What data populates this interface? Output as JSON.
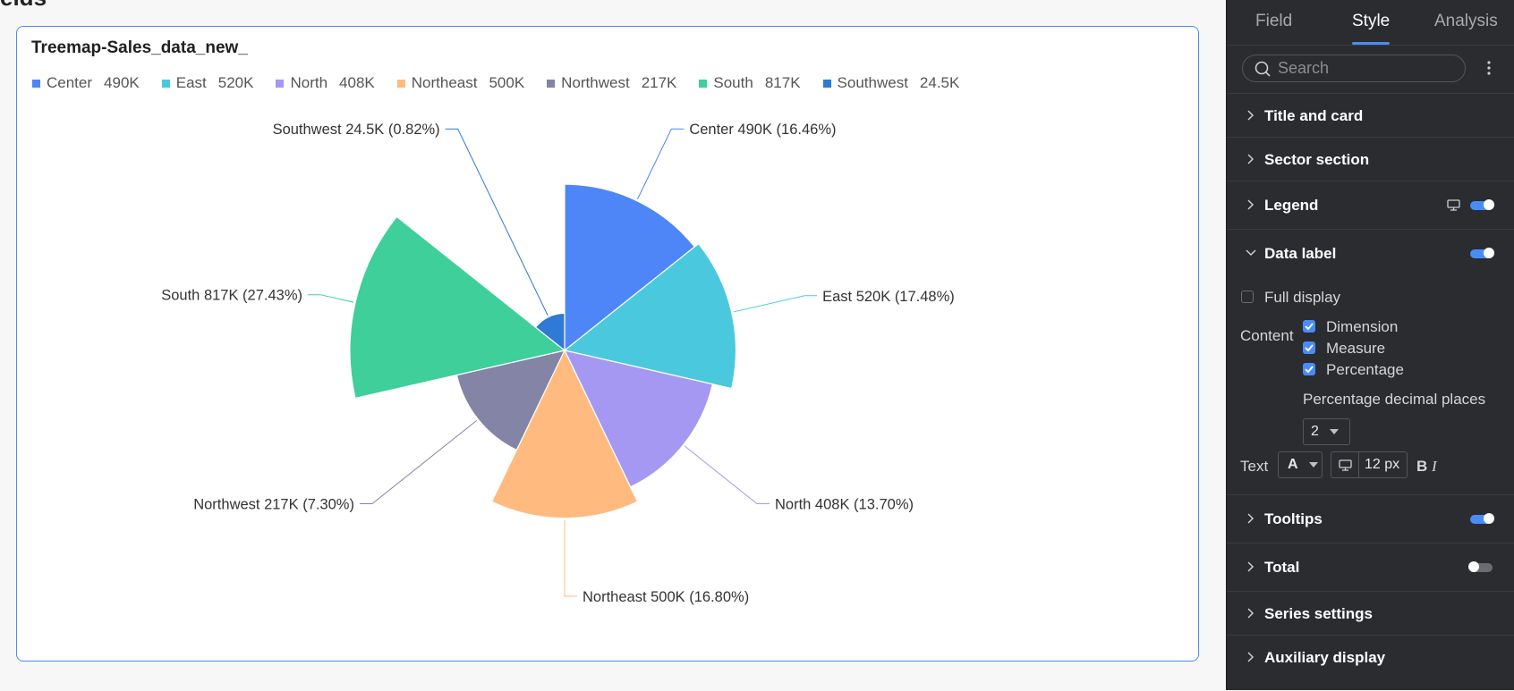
{
  "page_heading_fragment": "elds",
  "card": {
    "title": "Treemap-Sales_data_new_"
  },
  "legend": [
    {
      "name": "Center",
      "value": "490K",
      "color": "#4e86f8"
    },
    {
      "name": "East",
      "value": "520K",
      "color": "#4ac9de"
    },
    {
      "name": "North",
      "value": "408K",
      "color": "#a598f3"
    },
    {
      "name": "Northeast",
      "value": "500K",
      "color": "#ffbb7f"
    },
    {
      "name": "Northwest",
      "value": "217K",
      "color": "#8384a6"
    },
    {
      "name": "South",
      "value": "817K",
      "color": "#3ecf9a"
    },
    {
      "name": "Southwest",
      "value": "24.5K",
      "color": "#2e7ad4"
    }
  ],
  "chart_data": {
    "type": "pie",
    "subtype": "rose",
    "categories": [
      "Center",
      "East",
      "North",
      "Northeast",
      "Northwest",
      "South",
      "Southwest"
    ],
    "values": [
      490,
      520,
      408,
      500,
      217,
      817,
      24.5
    ],
    "unit": "K",
    "colors": [
      "#4e86f8",
      "#4ac9de",
      "#a598f3",
      "#ffbb7f",
      "#8384a6",
      "#3ecf9a",
      "#2e7ad4"
    ],
    "labels": [
      "Center 490K (16.46%)",
      "East 520K (17.48%)",
      "North 408K (13.70%)",
      "Northeast 500K (16.80%)",
      "Northwest 217K (7.30%)",
      "South 817K (27.43%)",
      "Southwest 24.5K (0.82%)"
    ],
    "legend_position": "top-left"
  },
  "panel": {
    "tabs": [
      {
        "label": "Field",
        "active": false
      },
      {
        "label": "Style",
        "active": true
      },
      {
        "label": "Analysis",
        "active": false
      }
    ],
    "search_placeholder": "Search",
    "sections": {
      "title_and_card": "Title and card",
      "sector_section": "Sector section",
      "legend": "Legend",
      "data_label": "Data label",
      "tooltips": "Tooltips",
      "total": "Total",
      "series_settings": "Series settings",
      "auxiliary_display": "Auxiliary display"
    },
    "data_label": {
      "full_display": "Full display",
      "content_label": "Content",
      "dimension": "Dimension",
      "measure": "Measure",
      "percentage": "Percentage",
      "decimal_label": "Percentage decimal places",
      "decimal_value": "2",
      "text_label": "Text",
      "font_color_value": "A",
      "font_size_value": "12 px",
      "bold": "B",
      "italic": "I"
    },
    "toggles": {
      "legend": true,
      "data_label": true,
      "tooltips": true,
      "total": false
    }
  }
}
